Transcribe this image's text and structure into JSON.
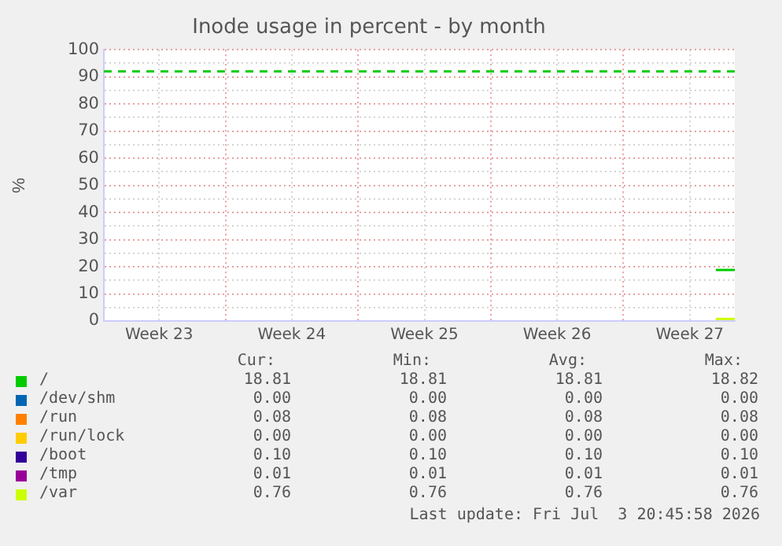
{
  "chart_data": {
    "type": "line",
    "title": "Inode usage in percent - by month",
    "ylabel": "%",
    "xlim": [
      "2026-06-01T14:00",
      "2026-07-04T21:00"
    ],
    "xticks": [
      {
        "value": "2026-06-04T12:00",
        "label": "Week 23"
      },
      {
        "value": "2026-06-08T00:00",
        "label": null
      },
      {
        "value": "2026-06-11T12:00",
        "label": "Week 24"
      },
      {
        "value": "2026-06-15T00:00",
        "label": null
      },
      {
        "value": "2026-06-18T12:00",
        "label": "Week 25"
      },
      {
        "value": "2026-06-22T00:00",
        "label": null
      },
      {
        "value": "2026-06-25T12:00",
        "label": "Week 26"
      },
      {
        "value": "2026-06-29T00:00",
        "label": null
      },
      {
        "value": "2026-07-02T12:00",
        "label": "Week 27"
      }
    ],
    "ylim": [
      0,
      100
    ],
    "yticks": [
      0,
      {
        "value": 5,
        "label": null
      },
      10,
      {
        "value": 15,
        "label": null
      },
      20,
      {
        "value": 25,
        "label": null
      },
      30,
      {
        "value": 35,
        "label": null
      },
      40,
      {
        "value": 45,
        "label": null
      },
      50,
      {
        "value": 55,
        "label": null
      },
      60,
      {
        "value": 65,
        "label": null
      },
      70,
      {
        "value": 75,
        "label": null
      },
      80,
      {
        "value": 85,
        "label": null
      },
      90,
      {
        "value": 95,
        "label": null
      },
      100
    ],
    "x": [
      "2026-07-03T21:00",
      "2026-07-04T21:00"
    ],
    "series": [
      {
        "name": "/",
        "color": "#00cc00",
        "values": [
          18.81,
          18.81
        ]
      },
      {
        "name": "/dev/shm",
        "color": "#0066b3",
        "values": [
          null,
          null
        ]
      },
      {
        "name": "/run",
        "color": "#ff8000",
        "values": [
          null,
          null
        ]
      },
      {
        "name": "/run/lock",
        "color": "#ffcc00",
        "values": [
          null,
          null
        ]
      },
      {
        "name": "/boot",
        "color": "#330099",
        "values": [
          null,
          null
        ]
      },
      {
        "name": "/tmp",
        "color": "#990099",
        "values": [
          null,
          null
        ]
      },
      {
        "name": "/var",
        "color": "#ccff00",
        "values": [
          0.76,
          0.76
        ]
      }
    ],
    "ref_lines": [
      {
        "axis": "y",
        "value": 92,
        "label": null,
        "color": "#00cc00",
        "line_style": "dashed"
      }
    ],
    "annotations": [
      "Cur:",
      "Min:",
      "Avg:",
      "Max:",
      "18.81",
      "18.81",
      "18.81",
      "18.82",
      "0.00",
      "0.00",
      "0.00",
      "0.00",
      "0.08",
      "0.08",
      "0.08",
      "0.08",
      "0.00",
      "0.00",
      "0.00",
      "0.00",
      "0.10",
      "0.10",
      "0.10",
      "0.10",
      "0.01",
      "0.01",
      "0.01",
      "0.01",
      "0.76",
      "0.76",
      "0.76",
      "0.76",
      "Last update: Fri Jul  3 20:45:58 2026"
    ],
    "grid": true,
    "legend": "bottom",
    "marker": "none",
    "line_style": "solid"
  }
}
